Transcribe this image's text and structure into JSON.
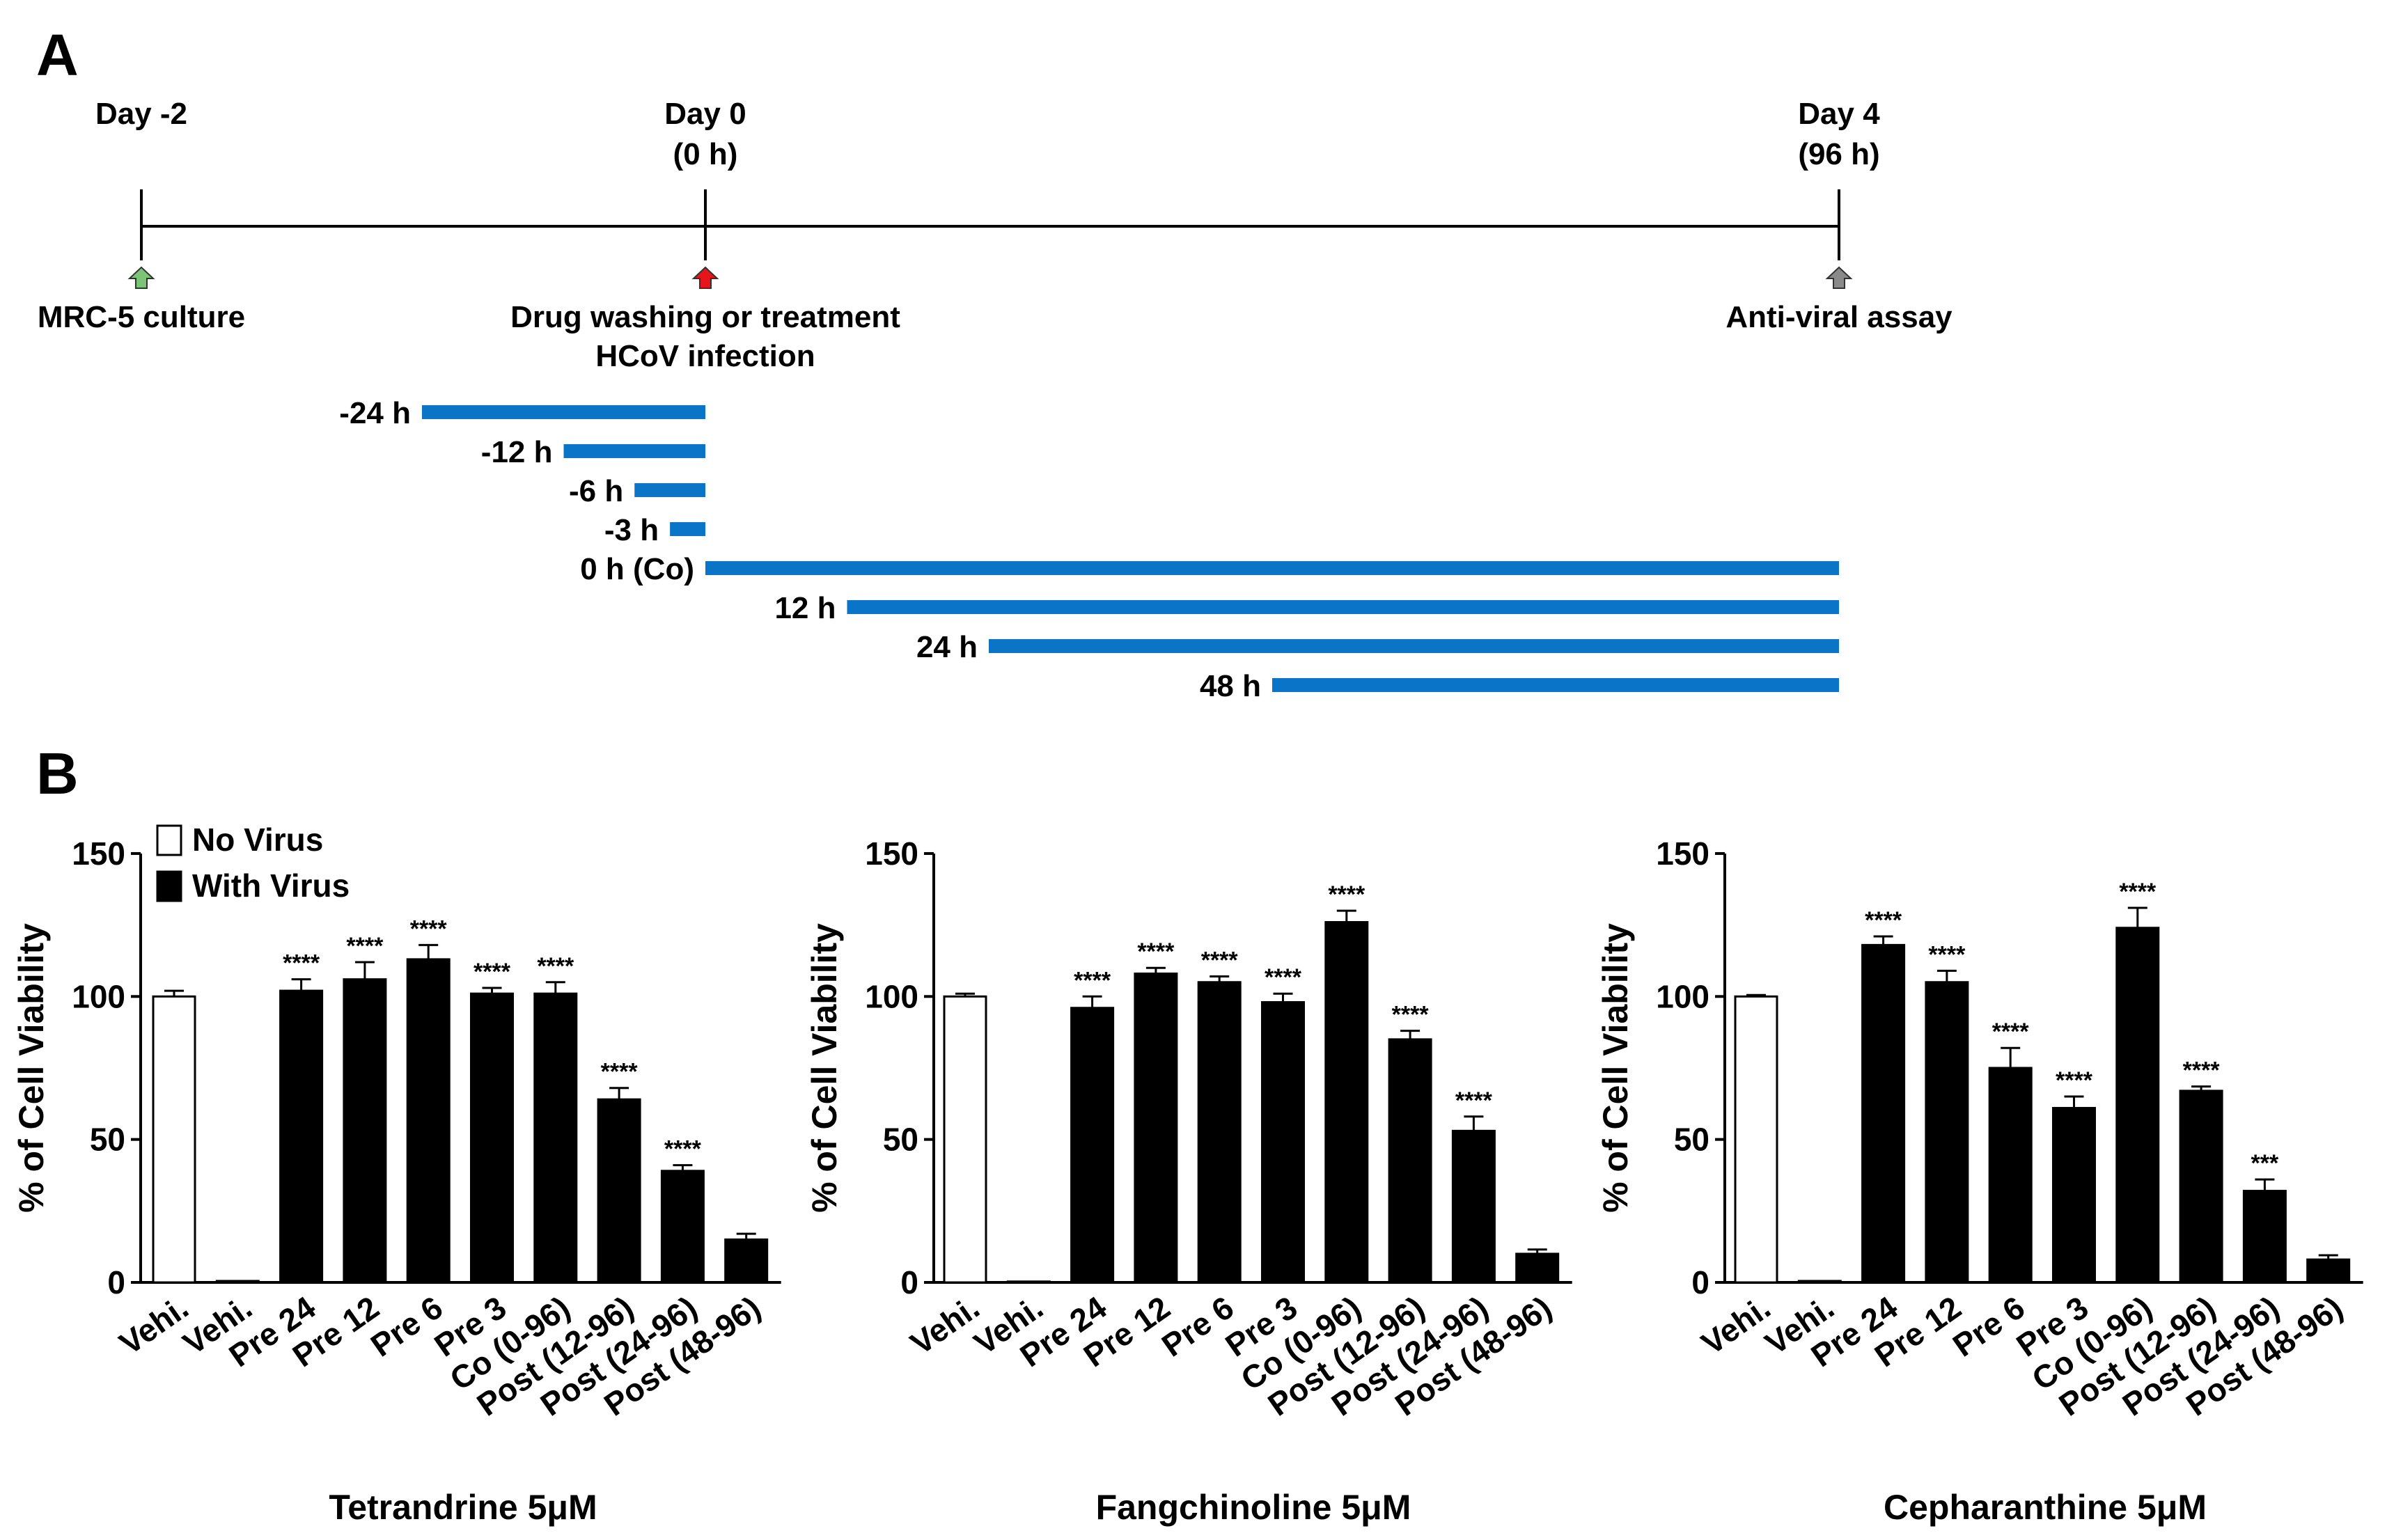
{
  "panels": {
    "a": "A",
    "b": "B"
  },
  "timeline": {
    "milestones": [
      {
        "label_line1": "Day -2",
        "label_line2": "",
        "event": "MRC-5 culture",
        "event_line2": "",
        "marker_color": "#7cc576"
      },
      {
        "label_line1": "Day 0",
        "label_line2": "(0 h)",
        "event": "Drug washing or treatment",
        "event_line2": "HCoV infection",
        "marker_color": "#e8141b"
      },
      {
        "label_line1": "Day 4",
        "label_line2": "(96 h)",
        "event": "Anti-viral assay",
        "event_line2": "",
        "marker_color": "#8a8a8a"
      }
    ],
    "bar_color": "#0a74c9",
    "treatments": [
      {
        "label": "-24 h",
        "start_h": -24,
        "end_h": 0
      },
      {
        "label": "-12 h",
        "start_h": -12,
        "end_h": 0
      },
      {
        "label": "-6 h",
        "start_h": -6,
        "end_h": 0
      },
      {
        "label": "-3 h",
        "start_h": -3,
        "end_h": 0
      },
      {
        "label": "0 h (Co)",
        "start_h": 0,
        "end_h": 96
      },
      {
        "label": "12 h",
        "start_h": 12,
        "end_h": 96
      },
      {
        "label": "24 h",
        "start_h": 24,
        "end_h": 96
      },
      {
        "label": "48 h",
        "start_h": 48,
        "end_h": 96
      }
    ]
  },
  "legend": {
    "no_virus": "No Virus",
    "with_virus": "With Virus"
  },
  "chart_data": [
    {
      "type": "bar",
      "title": "Tetrandrine 5μM",
      "ylabel": "% of Cell Viability",
      "ylim": [
        0,
        150
      ],
      "yticks": [
        0,
        50,
        100,
        150
      ],
      "categories": [
        "Vehi.",
        "Vehi.",
        "Pre 24",
        "Pre 12",
        "Pre 6",
        "Pre 3",
        "Co (0-96)",
        "Post (12-96)",
        "Post (24-96)",
        "Post (48-96)"
      ],
      "values": [
        100,
        0.5,
        102,
        106,
        113,
        101,
        101,
        64,
        39,
        15
      ],
      "errors": [
        2,
        0,
        4,
        6,
        5,
        2,
        4,
        4,
        2,
        2
      ],
      "fill": [
        "white",
        "black",
        "black",
        "black",
        "black",
        "black",
        "black",
        "black",
        "black",
        "black"
      ],
      "annotations": [
        "",
        "",
        "****",
        "****",
        "****",
        "****",
        "****",
        "****",
        "****",
        ""
      ]
    },
    {
      "type": "bar",
      "title": "Fangchinoline 5μM",
      "ylabel": "% of Cell Viability",
      "ylim": [
        0,
        150
      ],
      "yticks": [
        0,
        50,
        100,
        150
      ],
      "categories": [
        "Vehi.",
        "Vehi.",
        "Pre 24",
        "Pre 12",
        "Pre 6",
        "Pre 3",
        "Co (0-96)",
        "Post (12-96)",
        "Post (24-96)",
        "Post (48-96)"
      ],
      "values": [
        100,
        0.3,
        96,
        108,
        105,
        98,
        126,
        85,
        53,
        10
      ],
      "errors": [
        1,
        0,
        4,
        2,
        2,
        3,
        4,
        3,
        5,
        1.5
      ],
      "fill": [
        "white",
        "black",
        "black",
        "black",
        "black",
        "black",
        "black",
        "black",
        "black",
        "black"
      ],
      "annotations": [
        "",
        "",
        "****",
        "****",
        "****",
        "****",
        "****",
        "****",
        "****",
        ""
      ]
    },
    {
      "type": "bar",
      "title": "Cepharanthine 5μM",
      "ylabel": "% of Cell Viability",
      "ylim": [
        0,
        150
      ],
      "yticks": [
        0,
        50,
        100,
        150
      ],
      "categories": [
        "Vehi.",
        "Vehi.",
        "Pre 24",
        "Pre 12",
        "Pre 6",
        "Pre 3",
        "Co (0-96)",
        "Post (12-96)",
        "Post (24-96)",
        "Post (48-96)"
      ],
      "values": [
        100,
        0.5,
        118,
        105,
        75,
        61,
        124,
        67,
        32,
        8
      ],
      "errors": [
        0.5,
        0,
        3,
        4,
        7,
        4,
        7,
        1.5,
        4,
        1.5
      ],
      "fill": [
        "white",
        "black",
        "black",
        "black",
        "black",
        "black",
        "black",
        "black",
        "black",
        "black"
      ],
      "annotations": [
        "",
        "",
        "****",
        "****",
        "****",
        "****",
        "****",
        "****",
        "***",
        ""
      ]
    }
  ]
}
